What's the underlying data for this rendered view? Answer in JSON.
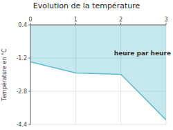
{
  "chart_data": {
    "type": "area",
    "title": "Evolution de la température",
    "y_label": "Température en °C",
    "annotations": [
      {
        "text": "heure par heure",
        "x": 1.85,
        "y": -1.05
      }
    ],
    "x": [
      0,
      1,
      2,
      3
    ],
    "values": [
      -1.38,
      -1.92,
      -1.98,
      -4.18
    ],
    "color": "#5abed0",
    "xlim": [
      0,
      3
    ],
    "ylim": [
      -4.4,
      0.4
    ],
    "xticks": [
      0,
      1,
      2,
      3
    ],
    "yticks": [
      0.4,
      -1.2,
      -2.8,
      -4.4
    ],
    "grid": true
  }
}
